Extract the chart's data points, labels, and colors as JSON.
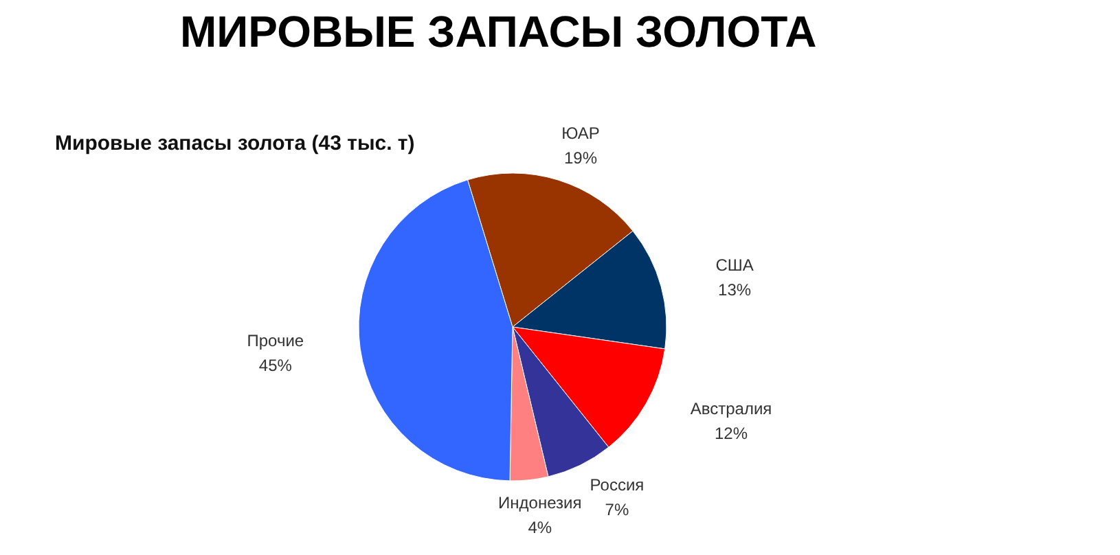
{
  "chart_data": {
    "type": "pie",
    "title": "МИРОВЫЕ ЗАПАСЫ ЗОЛОТА",
    "subtitle": "Мировые запасы золота (43 тыс. т)",
    "categories": [
      "ЮАР",
      "США",
      "Австралия",
      "Россия",
      "Индонезия",
      "Прочие"
    ],
    "values": [
      19,
      13,
      12,
      7,
      4,
      45
    ],
    "value_labels": [
      "19%",
      "13%",
      "12%",
      "7%",
      "4%",
      "45%"
    ],
    "colors": [
      "#993300",
      "#003366",
      "#ff0000",
      "#333399",
      "#ff8080",
      "#3366ff"
    ]
  }
}
